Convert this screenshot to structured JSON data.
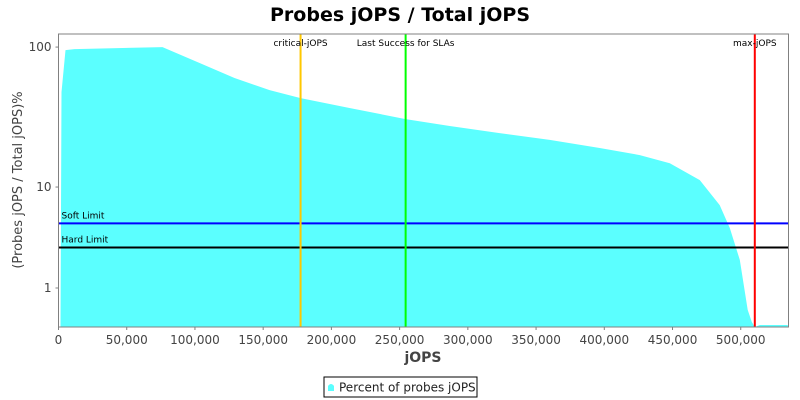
{
  "chart_data": {
    "type": "area",
    "title": "Probes jOPS / Total jOPS",
    "xlabel": "jOPS",
    "ylabel": "(Probes jOPS / Total jOPS)%",
    "xlim": [
      0,
      535000
    ],
    "ylim": [
      0,
      124
    ],
    "y_scale": "log",
    "grid": false,
    "legend_position": "bottom",
    "x_ticks": [
      0,
      50000,
      100000,
      150000,
      200000,
      250000,
      300000,
      350000,
      400000,
      450000,
      500000
    ],
    "x_tick_labels": [
      "0",
      "50,000",
      "100,000",
      "150,000",
      "200,000",
      "250,000",
      "300,000",
      "350,000",
      "400,000",
      "450,000",
      "500,000"
    ],
    "y_ticks": [
      1,
      10,
      100
    ],
    "y_tick_labels": [
      "1",
      "10",
      "100"
    ],
    "series": [
      {
        "name": "Percent of probes jOPS",
        "color": "#5BFFFF",
        "x": [
          1500,
          2200,
          5100,
          11700,
          76200,
          103400,
          129000,
          154700,
          177400,
          213300,
          254400,
          286700,
          323300,
          360000,
          396600,
          426000,
          448000,
          470000,
          484600,
          492000,
          499300,
          505100,
          508100,
          510300,
          514000,
          534500
        ],
        "y": [
          0,
          47.7,
          95.2,
          96.8,
          100,
          76.9,
          60.1,
          49.3,
          43.2,
          36.7,
          30.6,
          27.3,
          24.3,
          21.7,
          19.0,
          16.9,
          14.8,
          11.2,
          7.14,
          4.55,
          2.24,
          0.36,
          0.095,
          0,
          0.037,
          0.037
        ]
      }
    ],
    "horizontal_markers": [
      {
        "label": "Soft Limit",
        "value": 5,
        "color": "#0000FF"
      },
      {
        "label": "Hard Limit",
        "value": 3,
        "color": "#000000"
      }
    ],
    "vertical_markers": [
      {
        "label": "critical-jOPS",
        "value": 177400,
        "color": "#FFC800"
      },
      {
        "label": "Last Success for SLAs",
        "value": 254400,
        "color": "#00FF00"
      },
      {
        "label": "max-jOPS",
        "value": 510300,
        "color": "#FF0000"
      }
    ]
  }
}
